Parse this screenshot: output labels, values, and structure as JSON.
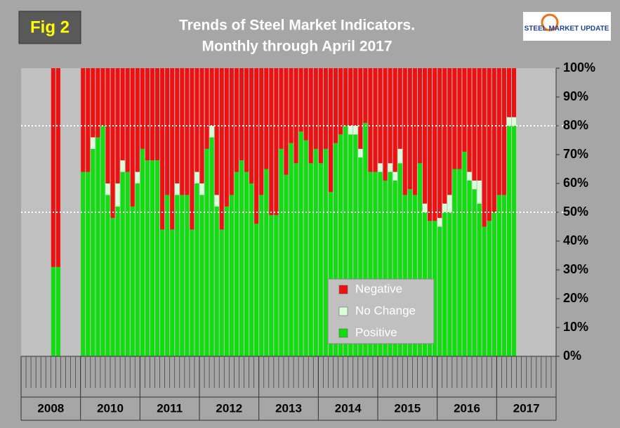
{
  "chart_data": {
    "type": "stacked_bar",
    "figure_label": "Fig 2",
    "title": "Trends of Steel Market Indicators.",
    "subtitle": "Monthly through  April 2017",
    "logo": "STEEL MARKET UPDATE",
    "year_labels": [
      "2008",
      "2010",
      "2011",
      "2012",
      "2013",
      "2014",
      "2015",
      "2016",
      "2017"
    ],
    "categories": [
      null,
      null,
      null,
      null,
      null,
      null,
      null,
      null,
      null,
      null,
      null,
      null,
      null,
      null,
      null,
      null,
      null,
      null,
      null,
      null,
      null,
      null,
      null,
      null,
      null,
      null,
      null,
      null,
      null,
      null,
      null,
      null,
      null,
      null,
      null,
      null,
      null,
      null,
      null,
      null,
      null,
      null,
      null,
      null,
      null,
      null,
      null,
      null,
      null,
      null,
      null,
      null,
      null,
      null,
      null,
      null,
      null,
      null,
      null,
      null,
      null,
      null,
      null,
      null,
      null,
      null,
      null,
      null,
      null,
      null,
      null,
      null,
      null,
      null,
      null,
      null,
      null,
      null,
      null,
      null,
      null,
      null,
      null,
      null,
      null,
      null,
      null,
      null,
      null,
      null,
      null,
      null,
      null,
      null,
      null,
      null,
      null,
      null,
      null,
      null,
      null,
      null,
      null,
      null,
      null,
      null,
      null,
      null
    ],
    "series": [
      {
        "name": "Positive",
        "color": "#11dd11",
        "values": [
          null,
          null,
          null,
          null,
          null,
          null,
          31,
          31,
          null,
          null,
          null,
          null,
          64,
          64,
          72,
          76,
          80,
          56,
          48,
          52,
          64,
          64,
          52,
          60,
          72,
          68,
          68,
          68,
          44,
          56,
          44,
          56,
          56,
          56,
          44,
          60,
          56,
          72,
          76,
          52,
          44,
          52,
          56,
          64,
          68,
          64,
          60,
          46,
          56,
          65,
          49,
          49,
          72,
          63,
          74,
          67,
          78,
          75,
          67,
          72,
          67,
          72,
          57,
          74,
          77,
          80,
          77,
          77,
          69,
          81,
          64,
          64,
          64,
          61,
          64,
          61,
          67,
          56,
          58,
          56,
          67,
          50,
          47,
          47,
          45,
          50,
          50,
          65,
          65,
          71,
          61,
          58,
          53,
          45,
          47,
          50,
          56,
          56,
          80,
          80,
          null,
          null,
          null,
          null,
          null,
          null,
          null,
          null
        ]
      },
      {
        "name": "No Change",
        "color": "#d8ffd8",
        "values": [
          null,
          null,
          null,
          null,
          null,
          null,
          0,
          0,
          null,
          null,
          null,
          null,
          0,
          0,
          4,
          0,
          0,
          4,
          0,
          8,
          4,
          0,
          0,
          4,
          0,
          0,
          0,
          0,
          0,
          0,
          0,
          4,
          0,
          0,
          0,
          4,
          4,
          0,
          4,
          4,
          0,
          0,
          0,
          0,
          0,
          0,
          0,
          0,
          0,
          0,
          0,
          0,
          0,
          0,
          0,
          0,
          0,
          0,
          0,
          0,
          0,
          0,
          0,
          0,
          0,
          0,
          3,
          3,
          3,
          0,
          0,
          0,
          3,
          0,
          3,
          3,
          5,
          0,
          0,
          0,
          0,
          3,
          0,
          0,
          3,
          3,
          6,
          0,
          0,
          0,
          3,
          3,
          8,
          0,
          0,
          0,
          0,
          0,
          3,
          3,
          null,
          null,
          null,
          null,
          null,
          null,
          null,
          null
        ]
      },
      {
        "name": "Negative",
        "color": "#ee1111",
        "values": [
          null,
          null,
          null,
          null,
          null,
          null,
          69,
          69,
          null,
          null,
          null,
          null,
          36,
          36,
          24,
          24,
          20,
          40,
          52,
          40,
          32,
          36,
          48,
          36,
          28,
          32,
          32,
          32,
          56,
          44,
          56,
          40,
          44,
          44,
          56,
          36,
          40,
          28,
          20,
          44,
          56,
          48,
          44,
          36,
          32,
          36,
          40,
          54,
          44,
          35,
          51,
          51,
          28,
          37,
          26,
          33,
          22,
          25,
          33,
          28,
          33,
          28,
          43,
          26,
          23,
          20,
          20,
          20,
          28,
          19,
          36,
          36,
          33,
          39,
          33,
          36,
          28,
          44,
          42,
          44,
          33,
          47,
          53,
          53,
          52,
          47,
          44,
          35,
          35,
          29,
          36,
          39,
          39,
          55,
          53,
          50,
          44,
          44,
          17,
          17,
          null,
          null,
          null,
          null,
          null,
          null,
          null,
          null
        ]
      }
    ],
    "ylim": [
      0,
      100
    ],
    "yticks": [
      {
        "value": 0,
        "label": "0%"
      },
      {
        "value": 10,
        "label": "10%"
      },
      {
        "value": 20,
        "label": "20%"
      },
      {
        "value": 30,
        "label": "30%"
      },
      {
        "value": 40,
        "label": "40%"
      },
      {
        "value": 50,
        "label": "50%"
      },
      {
        "value": 60,
        "label": "60%"
      },
      {
        "value": 70,
        "label": "70%"
      },
      {
        "value": 80,
        "label": "80%"
      },
      {
        "value": 90,
        "label": "90%"
      },
      {
        "value": 100,
        "label": "100%"
      }
    ],
    "reference_lines": [
      50,
      80
    ],
    "legend_order": [
      2,
      1,
      0
    ]
  }
}
